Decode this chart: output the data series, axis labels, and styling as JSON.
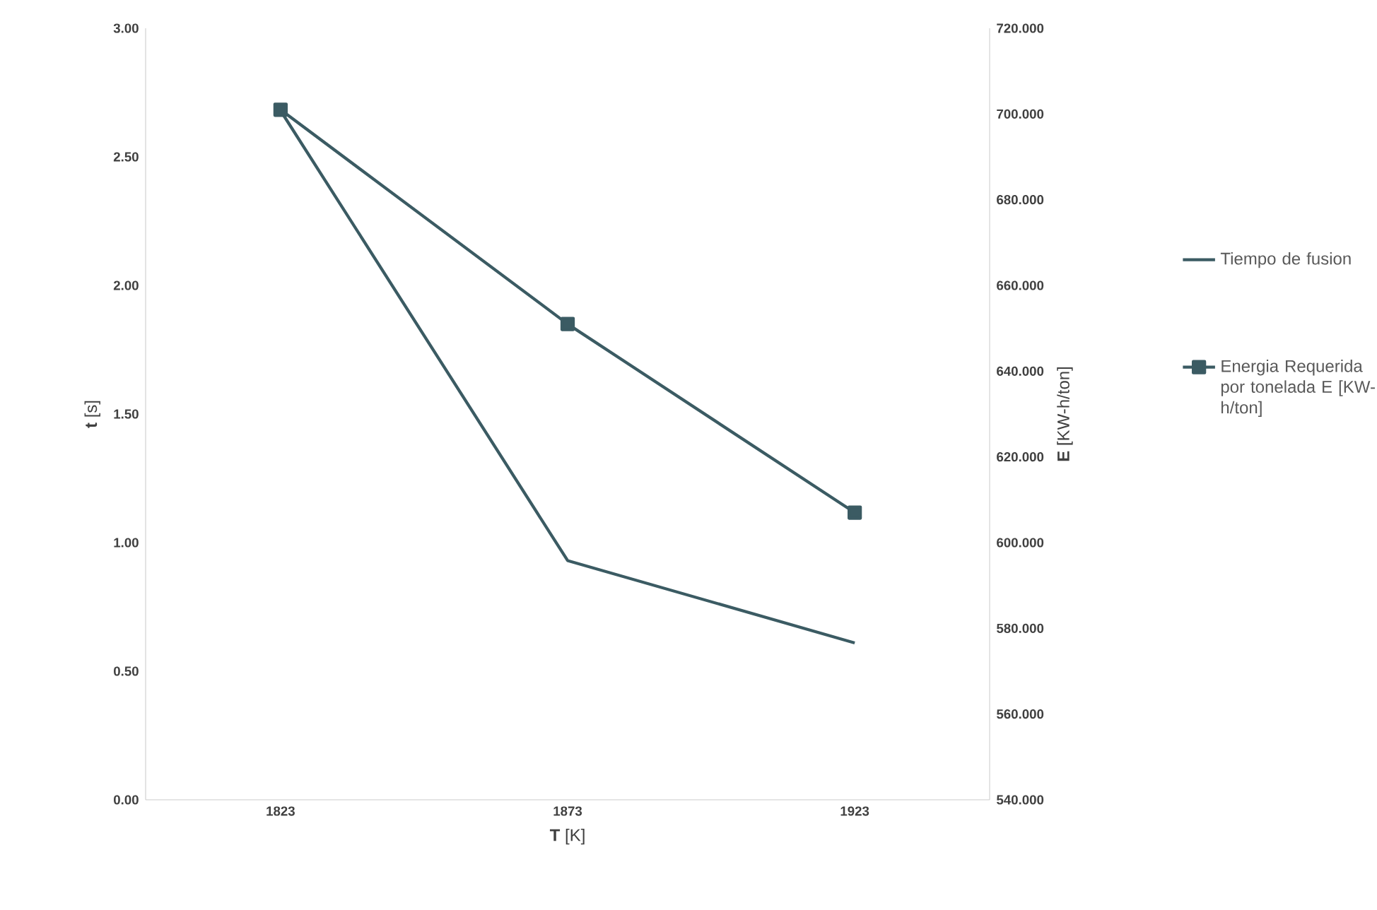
{
  "chart_data": {
    "type": "line",
    "xlabel": "**T** [K]",
    "ylabel": "**t** [s]",
    "y2label": "**E**  [KW-h/ton]",
    "categories": [
      "1823",
      "1873",
      "1923"
    ],
    "series": [
      {
        "name": "Tiempo de fusion",
        "color": "#3b5b63",
        "values": [
          2.68,
          0.93,
          0.61
        ],
        "marker": "none"
      },
      {
        "name": "Energia Requerida por tonelada E [KW-h/ton]",
        "color": "#3b5b63",
        "values": [
          701,
          651,
          607
        ],
        "axis": "y2",
        "marker": "square"
      }
    ],
    "ylim": [
      0,
      3
    ],
    "yticks": [
      {
        "value": 0,
        "label": "0.00"
      },
      {
        "value": 0.5,
        "label": "0.50"
      },
      {
        "value": 1,
        "label": "1.00"
      },
      {
        "value": 1.5,
        "label": "1.50"
      },
      {
        "value": 2,
        "label": "2.00"
      },
      {
        "value": 2.5,
        "label": "2.50"
      },
      {
        "value": 3,
        "label": "3.00"
      }
    ],
    "y2lim": [
      540,
      720
    ],
    "y2ticks": [
      {
        "value": 540,
        "label": "540.000"
      },
      {
        "value": 560,
        "label": "560.000"
      },
      {
        "value": 580,
        "label": "580.000"
      },
      {
        "value": 600,
        "label": "600.000"
      },
      {
        "value": 620,
        "label": "620.000"
      },
      {
        "value": 640,
        "label": "640.000"
      },
      {
        "value": 660,
        "label": "660.000"
      },
      {
        "value": 680,
        "label": "680.000"
      },
      {
        "value": 700,
        "label": "700.000"
      },
      {
        "value": 720,
        "label": "720.000"
      }
    ],
    "grid": false,
    "legend": "right",
    "line_style": "solid"
  }
}
